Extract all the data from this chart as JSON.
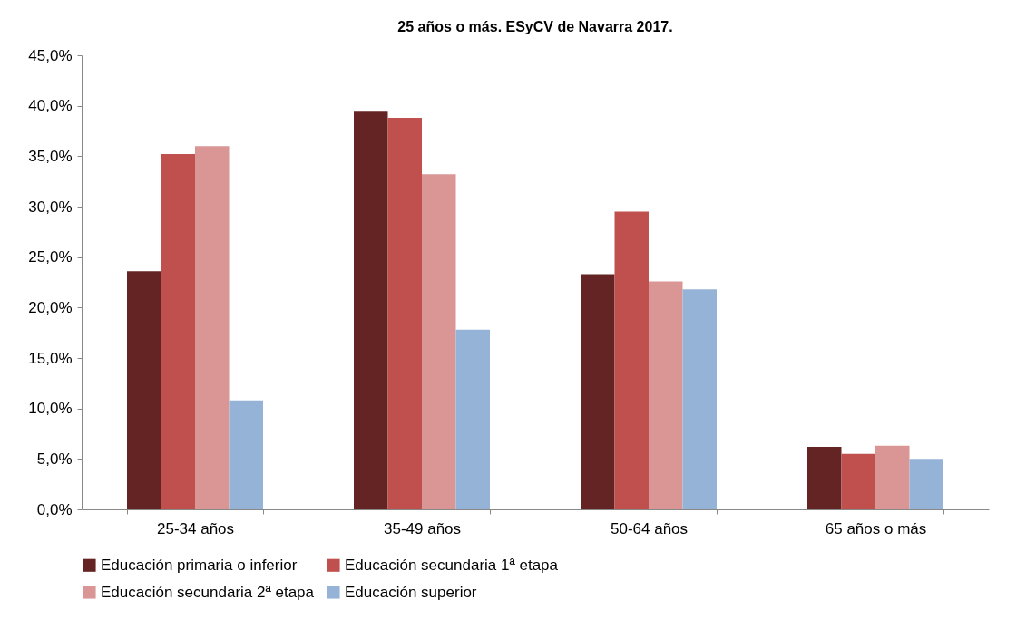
{
  "chart_data": {
    "type": "bar",
    "title": "25 años o más. ESyCV de Navarra 2017.",
    "categories": [
      "25-34 años",
      "35-49 años",
      "50-64 años",
      "65 años o más"
    ],
    "series": [
      {
        "name": "Educación primaria o inferior",
        "color": "#632423",
        "values": [
          23.6,
          39.4,
          23.3,
          6.2
        ]
      },
      {
        "name": "Educación secundaria 1ª etapa",
        "color": "#c0504d",
        "values": [
          35.2,
          38.8,
          29.5,
          5.5
        ]
      },
      {
        "name": "Educación secundaria 2ª etapa",
        "color": "#d99694",
        "values": [
          36.0,
          33.2,
          22.6,
          6.3
        ]
      },
      {
        "name": "Educación superior",
        "color": "#95b3d7",
        "values": [
          10.8,
          17.8,
          21.8,
          5.0
        ]
      }
    ],
    "ylim": [
      0,
      45
    ],
    "yticks": [
      {
        "value": 0,
        "label": "0,0%"
      },
      {
        "value": 5,
        "label": "5,0%"
      },
      {
        "value": 10,
        "label": "10,0%"
      },
      {
        "value": 15,
        "label": "15,0%"
      },
      {
        "value": 20,
        "label": "20,0%"
      },
      {
        "value": 25,
        "label": "25,0%"
      },
      {
        "value": 30,
        "label": "30,0%"
      },
      {
        "value": 35,
        "label": "35,0%"
      },
      {
        "value": 40,
        "label": "40,0%"
      },
      {
        "value": 45,
        "label": "45,0%"
      }
    ],
    "grid": false,
    "legend": "bottom"
  }
}
